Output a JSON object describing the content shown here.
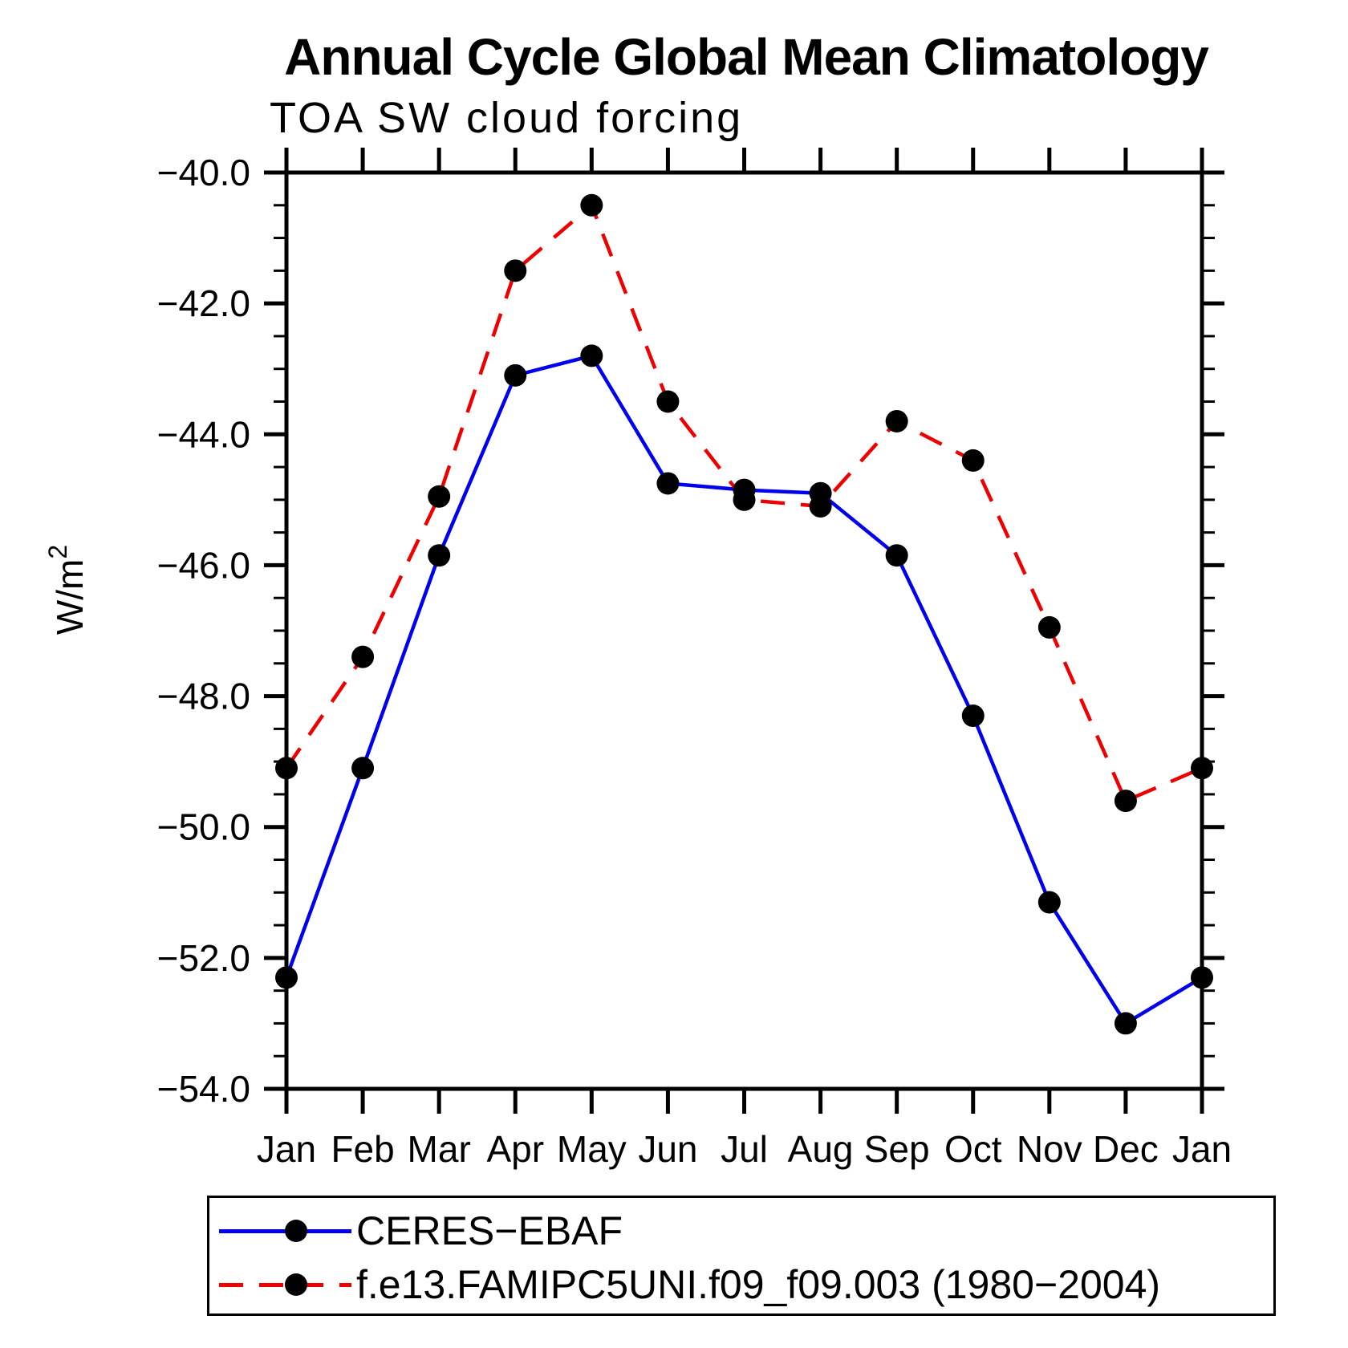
{
  "title": "Annual Cycle Global Mean Climatology",
  "subtitle": "TOA SW cloud forcing",
  "colors": {
    "series_blue": "#0000ee",
    "series_red": "#ee0000",
    "marker": "#000000",
    "axis": "#000000",
    "background": "#ffffff"
  },
  "chart_data": {
    "type": "line",
    "title": "Annual Cycle Global Mean Climatology",
    "subtitle": "TOA SW cloud forcing",
    "xlabel": "",
    "ylabel": "W/m²",
    "categories": [
      "Jan",
      "Feb",
      "Mar",
      "Apr",
      "May",
      "Jun",
      "Jul",
      "Aug",
      "Sep",
      "Oct",
      "Nov",
      "Dec",
      "Jan"
    ],
    "ylim": [
      -54.0,
      -40.0
    ],
    "ytick_major_step": 2.0,
    "ytick_minor_step": 0.5,
    "ytick_labels": [
      "−40.0",
      "−42.0",
      "−44.0",
      "−46.0",
      "−48.0",
      "−50.0",
      "−52.0",
      "−54.0"
    ],
    "ytick_values": [
      -40.0,
      -42.0,
      -44.0,
      -46.0,
      -48.0,
      -50.0,
      -52.0,
      -54.0
    ],
    "grid": false,
    "legend_position": "bottom-left",
    "series": [
      {
        "name": "CERES−EBAF",
        "color": "#0000ee",
        "style": "solid",
        "marker": "circle",
        "marker_color": "#000000",
        "values": [
          -52.3,
          -49.1,
          -45.85,
          -43.1,
          -42.8,
          -44.75,
          -44.85,
          -44.9,
          -45.85,
          -48.3,
          -51.15,
          -53.0,
          -52.3
        ]
      },
      {
        "name": "f.e13.FAMIPC5UNI.f09_f09.003 (1980−2004)",
        "color": "#ee0000",
        "style": "dashed",
        "marker": "circle",
        "marker_color": "#000000",
        "values": [
          -49.1,
          -47.4,
          -44.95,
          -41.5,
          -40.5,
          -43.5,
          -45.0,
          -45.1,
          -43.8,
          -44.4,
          -46.95,
          -49.6,
          -49.1
        ]
      }
    ]
  }
}
